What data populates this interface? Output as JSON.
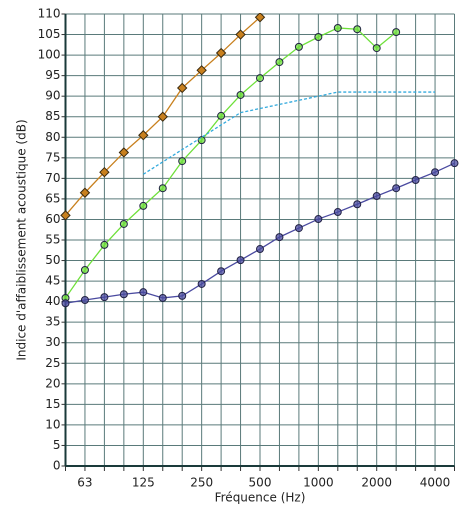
{
  "chart_data": {
    "type": "line",
    "xlabel": "Fréquence (Hz)",
    "ylabel": "Indice d'affaiblissement acoustique (dB)",
    "categories": [
      null,
      "63",
      null,
      null,
      "125",
      null,
      null,
      "250",
      null,
      null,
      "500",
      null,
      null,
      "1000",
      null,
      null,
      "2000",
      null,
      null,
      "4000",
      null
    ],
    "ylim": [
      0,
      110
    ],
    "yticks": [
      0,
      5,
      10,
      15,
      20,
      25,
      30,
      35,
      40,
      45,
      50,
      55,
      60,
      65,
      70,
      75,
      80,
      85,
      90,
      95,
      100,
      105,
      110
    ],
    "grid": true,
    "series": [
      {
        "color": "#c8801e",
        "marker": "diamond",
        "values": [
          61,
          66.5,
          71.5,
          76.3,
          80.5,
          85,
          92,
          96.3,
          100.5,
          105,
          109.2,
          null,
          null,
          null,
          null,
          null,
          null,
          null,
          null,
          null,
          null
        ]
      },
      {
        "color": "#6ee03a",
        "marker": "circle",
        "values": [
          40.9,
          47.7,
          53.8,
          58.9,
          63.3,
          67.6,
          74.2,
          79.3,
          85.2,
          90.3,
          94.4,
          98.3,
          102,
          104.4,
          106.6,
          106.3,
          101.7,
          105.6,
          null,
          null,
          null
        ]
      },
      {
        "color": "#4a4aa0",
        "marker": "circle",
        "values": [
          39.6,
          40.4,
          41.1,
          41.8,
          42.3,
          40.9,
          41.4,
          44.3,
          47.4,
          50.1,
          52.8,
          55.7,
          57.9,
          60.1,
          61.8,
          63.7,
          65.7,
          67.6,
          69.6,
          71.5,
          73.7
        ]
      },
      {
        "color": "#33aadd",
        "marker": "none",
        "dashed": true,
        "values": [
          null,
          null,
          null,
          null,
          71,
          74,
          77,
          80,
          83,
          86,
          87,
          88,
          89,
          90,
          91,
          91,
          91,
          91,
          91,
          91,
          null
        ]
      }
    ]
  }
}
